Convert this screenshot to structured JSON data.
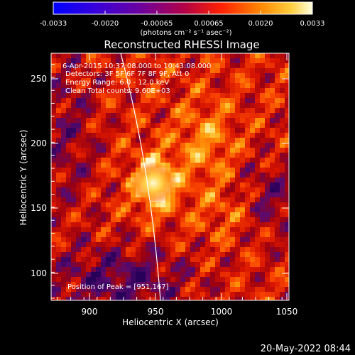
{
  "colorbar": {
    "tick_labels": [
      "-0.0033",
      "-0.0020",
      "-0.00065",
      "0.00065",
      "0.0020",
      "0.0033"
    ],
    "units_label": "(photons cm⁻² s⁻¹ asec⁻²)"
  },
  "plot": {
    "title": "Reconstructed RHESSI Image",
    "info_lines": [
      "6-Apr-2015 10:37:08.000 to 10:43:08.000",
      "Detectors: 3F 5F 6F 7F 8F 9F, Att 0",
      "Energy Range: 6.0 - 12.0 keV",
      "Clean     Total counts: 9.60E+03"
    ],
    "peak_label": "Position of Peak = [951,167]",
    "xlabel": "Heliocentric X (arcsec)",
    "ylabel": "Heliocentric Y (arcsec)",
    "x_ticks": [
      "900",
      "950",
      "1000",
      "1050"
    ],
    "y_ticks": [
      "100",
      "150",
      "200",
      "250"
    ]
  },
  "footer": {
    "date": "20-May-2022 08:44"
  }
}
